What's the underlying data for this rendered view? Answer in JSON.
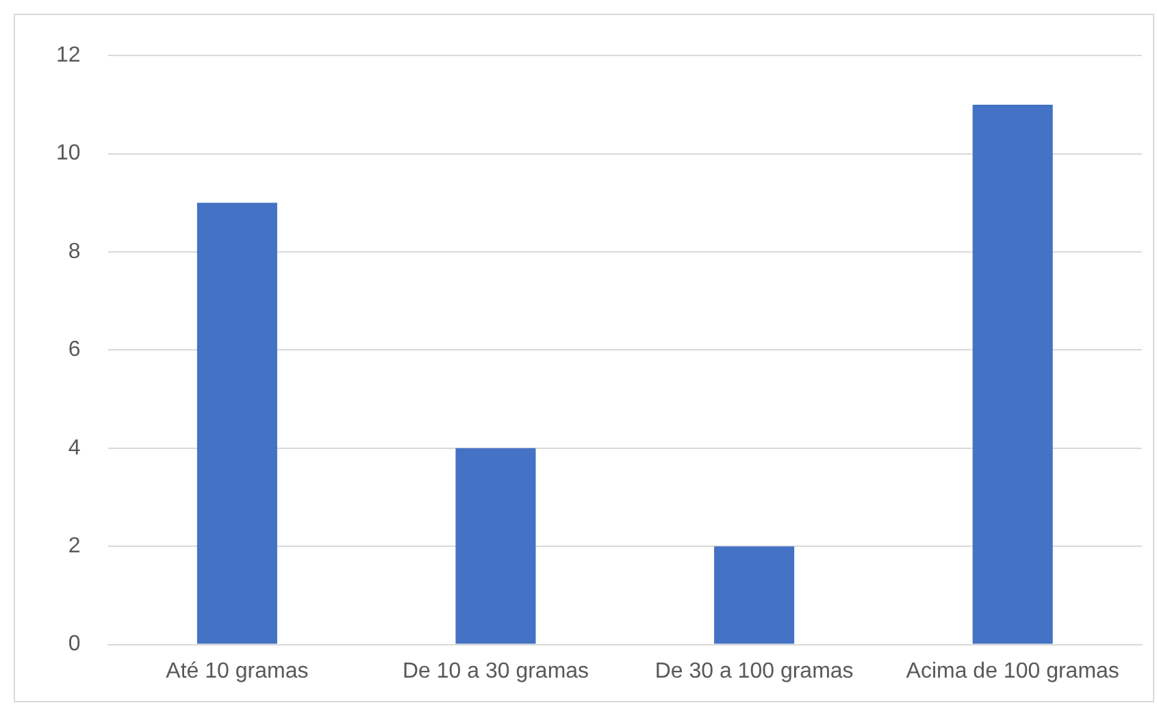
{
  "chart_data": {
    "type": "bar",
    "categories": [
      "Até 10 gramas",
      "De 10 a 30 gramas",
      "De 30 a 100 gramas",
      "Acima de 100 gramas"
    ],
    "values": [
      9,
      4,
      2,
      11
    ],
    "color": "#4472c4",
    "ylim": [
      0,
      12
    ],
    "yticks": [
      0,
      2,
      4,
      6,
      8,
      10,
      12
    ],
    "grid": "y",
    "legend": false
  }
}
